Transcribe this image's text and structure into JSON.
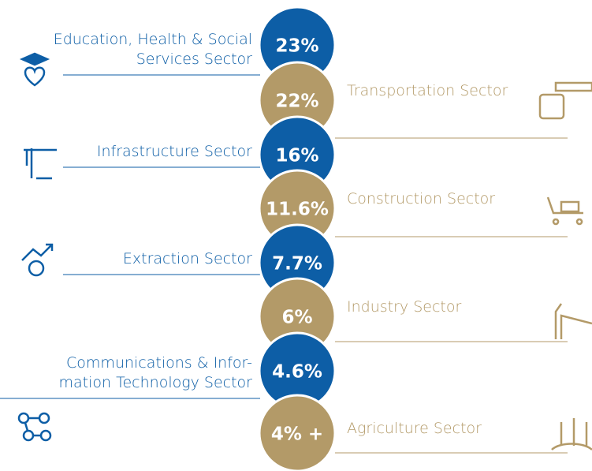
{
  "sectors": [
    {
      "label_lines": [
        "Education, Health & Social",
        "Services Sector"
      ],
      "value_label": "23%"
    },
    {
      "label_lines": [
        "Transportation Sector"
      ],
      "value_label": "22%"
    },
    {
      "label_lines": [
        "Infrastructure Sector"
      ],
      "value_label": "16%"
    },
    {
      "label_lines": [
        "Construction Sector"
      ],
      "value_label": "11.6%"
    },
    {
      "label_lines": [
        "Extraction  Sector"
      ],
      "value_label": "7.7%"
    },
    {
      "label_lines": [
        "Industry Sector"
      ],
      "value_label": "6%"
    },
    {
      "label_lines": [
        "Communications & Infor-",
        "mation Technology Sector"
      ],
      "value_label": "4.6%"
    },
    {
      "label_lines": [
        "Agriculture Sector"
      ],
      "value_label": "4% +"
    }
  ]
}
